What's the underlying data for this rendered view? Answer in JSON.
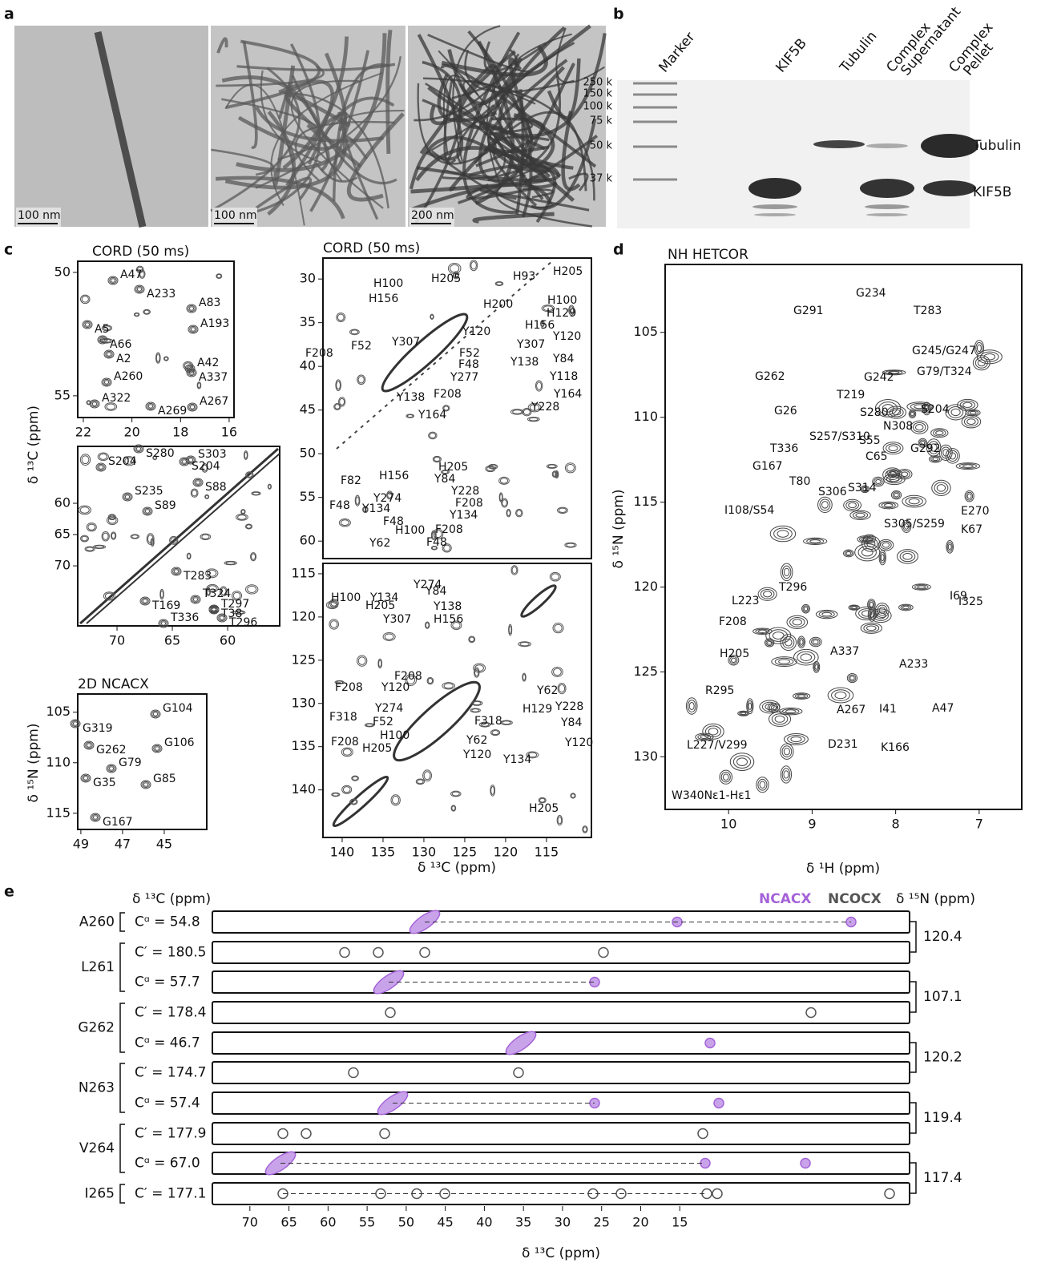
{
  "panel_a": {
    "label": "a",
    "scale_bars": [
      "100 nm",
      "100 nm",
      "200 nm"
    ]
  },
  "panel_b": {
    "label": "b",
    "lanes": [
      [
        "Marker"
      ],
      [
        "KIF5B"
      ],
      [
        "Tubulin"
      ],
      [
        "Complex",
        "Supernatant"
      ],
      [
        "Complex",
        "Pellet"
      ]
    ],
    "ladder": [
      "250 k",
      "150 k",
      "100 k",
      "75 k",
      "50 k",
      "37 k"
    ],
    "bands": [
      "Tubulin",
      "KIF5B"
    ]
  },
  "panel_c": {
    "label": "c",
    "y_label": "δ ¹³C (ppm)",
    "x_label": "δ ¹³C (ppm)",
    "ca_region": {
      "title": "CORD (50 ms)",
      "xlim": [
        22.23,
        15.8
      ],
      "ylim": [
        49.55,
        55.88
      ],
      "xticks": [
        22,
        20,
        18,
        16
      ],
      "yticks": [
        50,
        55
      ],
      "peaks": [
        "A47",
        "A233",
        "A83",
        "A5",
        "A193",
        "A66",
        "A42",
        "A2",
        "A260",
        "A337",
        "A322",
        "A269",
        "A267"
      ]
    },
    "cacb_region": {
      "xlim": [
        73.55,
        55.3
      ],
      "ylim": [
        50.9,
        79.6
      ],
      "xticks": [
        70,
        65,
        60
      ],
      "yticks": [
        60,
        65,
        70
      ],
      "peaks": [
        "S204",
        "S280",
        "S303",
        "S204",
        "S235",
        "S88",
        "S89",
        "T283",
        "T324",
        "T169",
        "T297",
        "T38",
        "T336",
        "T296"
      ]
    },
    "ncacx": {
      "title": "2D NCACX",
      "y_label": "δ ¹⁵N (ppm)",
      "xlim": [
        49.15,
        42.96
      ],
      "ylim": [
        103.2,
        116.6
      ],
      "xticks": [
        49,
        47,
        45
      ],
      "yticks": [
        105,
        110,
        115
      ],
      "peaks": [
        "G104",
        "G319",
        "G106",
        "G262",
        "G79",
        "G35",
        "G85",
        "G167"
      ]
    },
    "aromatic": {
      "xlim": [
        142.35,
        109.5
      ],
      "xticks": [
        140,
        135,
        130,
        125,
        120,
        115
      ],
      "top": {
        "title": "CORD (50 ms)",
        "ylim": [
          27.6,
          62
        ],
        "yticks": [
          30,
          35,
          40,
          45,
          50,
          55,
          60
        ],
        "peaks": [
          "H205",
          "H100",
          "H205",
          "H93",
          "H156",
          "H100",
          "H200",
          "H129",
          "H156",
          "Y120",
          "Y120",
          "Y307",
          "Y307",
          "F52",
          "F52",
          "Y84",
          "Y138",
          "F48",
          "F208",
          "Y277",
          "Y118",
          "Y138",
          "F208",
          "Y164",
          "Y228",
          "Y164",
          "H205",
          "H156",
          "Y84",
          "F82",
          "Y228",
          "Y274",
          "F208",
          "F48",
          "Y134",
          "Y134",
          "F48",
          "F208",
          "H100",
          "Y62",
          "F48"
        ]
      },
      "bottom": {
        "ylim": [
          113.8,
          145.5
        ],
        "yticks": [
          115,
          120,
          125,
          130,
          135,
          140
        ],
        "peaks": [
          "Y274",
          "H100",
          "Y134",
          "Y84",
          "H205",
          "Y138",
          "Y307",
          "H156",
          "F208",
          "F208",
          "Y120",
          "Y274",
          "F318",
          "F52",
          "F318",
          "H100",
          "F208",
          "H205",
          "Y62",
          "Y120",
          "Y62",
          "H129",
          "Y228",
          "Y84",
          "Y120",
          "Y134",
          "H205"
        ]
      }
    }
  },
  "panel_d": {
    "label": "d",
    "title": "NH HETCOR",
    "x_label": "δ ¹H (ppm)",
    "y_label": "δ ¹⁵N (ppm)",
    "xlim": [
      10.76,
      6.49
    ],
    "ylim": [
      101,
      133.1
    ],
    "xticks": [
      10,
      9,
      8,
      7
    ],
    "yticks": [
      105,
      110,
      115,
      120,
      125,
      130
    ],
    "peaks": [
      "G234",
      "G291",
      "T283",
      "G245/G247",
      "G262",
      "G242",
      "G79/T324",
      "T219",
      "S280",
      "S204",
      "G26",
      "N308",
      "S257/S310",
      "S55",
      "C65",
      "G292",
      "T336",
      "G167",
      "T80",
      "S306",
      "S314",
      "E270",
      "I108/S54",
      "S305/S259",
      "K67",
      "I69",
      "T296",
      "I325",
      "L223",
      "F208",
      "A337",
      "H205",
      "A233",
      "R295",
      "A267",
      "I41",
      "A47",
      "D231",
      "L227/V299",
      "K166",
      "W340Nε1-Hε1"
    ]
  },
  "panel_e": {
    "label": "e",
    "c_header": "δ ¹³C (ppm)",
    "n_header": "δ ¹⁵N (ppm)",
    "x_label": "δ ¹³C (ppm)",
    "legend": [
      {
        "name": "NCACX",
        "color": "#a463d8"
      },
      {
        "name": "NCOCX",
        "color": "#555555"
      }
    ],
    "residues": [
      "A260",
      "L261",
      "G262",
      "N263",
      "V264",
      "I265"
    ],
    "shifts": [
      "Cᵅ = 54.8",
      "C′ = 180.5",
      "Cᵅ = 57.7",
      "C′ = 178.4",
      "Cᵅ = 46.7",
      "C′ = 174.7",
      "Cᵅ = 57.4",
      "C′ = 177.9",
      "Cᵅ = 67.0",
      "C′ = 177.1"
    ],
    "n_shifts": [
      "120.4",
      "107.1",
      "120.2",
      "119.4",
      "117.4"
    ],
    "xlim": [
      74.8,
      -14.4
    ],
    "xticks": [
      70,
      65,
      60,
      55,
      50,
      45,
      40,
      35,
      30,
      25,
      20,
      15
    ]
  }
}
